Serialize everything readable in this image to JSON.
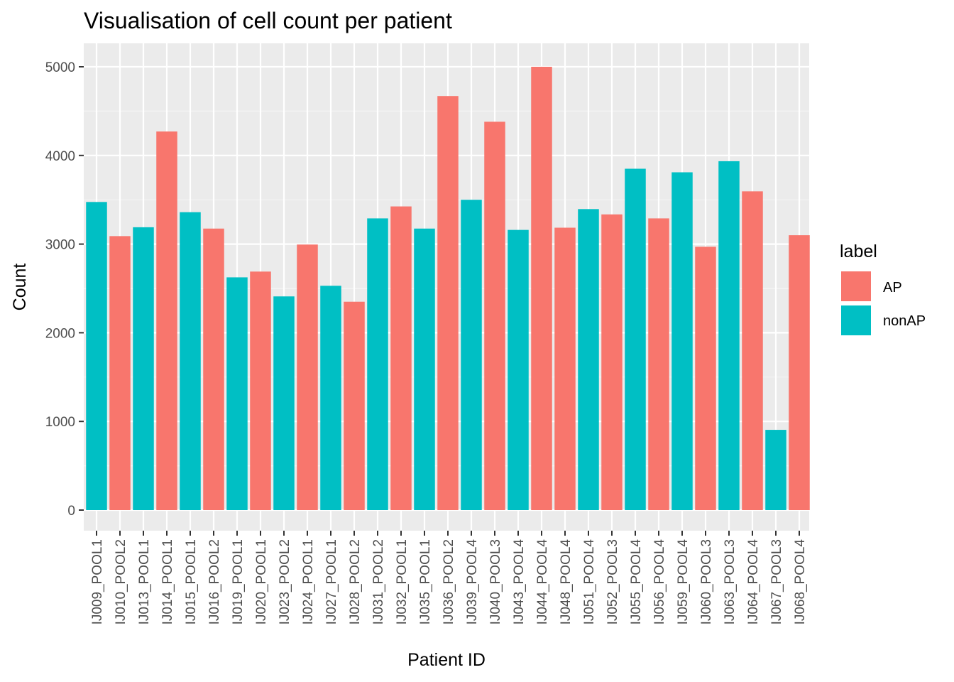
{
  "chart_data": {
    "type": "bar",
    "title": "Visualisation of cell count per patient",
    "xlabel": "Patient ID",
    "ylabel": "Count",
    "ylim": [
      0,
      5250
    ],
    "yticks": [
      0,
      1000,
      2000,
      3000,
      4000,
      5000
    ],
    "ytick_labels": [
      "0",
      "1000",
      "2000",
      "3000",
      "4000",
      "5000"
    ],
    "grid": true,
    "legend_position": "right",
    "legend": {
      "title": "label",
      "entries": [
        {
          "key": "AP",
          "label": "AP",
          "color": "#F8766D"
        },
        {
          "key": "nonAP",
          "label": "nonAP",
          "color": "#00BFC4"
        }
      ]
    },
    "categories": [
      "IJ009_POOL1",
      "IJ010_POOL2",
      "IJ013_POOL1",
      "IJ014_POOL1",
      "IJ015_POOL1",
      "IJ016_POOL2",
      "IJ019_POOL1",
      "IJ020_POOL1",
      "IJ023_POOL2",
      "IJ024_POOL1",
      "IJ027_POOL1",
      "IJ028_POOL2",
      "IJ031_POOL2",
      "IJ032_POOL1",
      "IJ035_POOL1",
      "IJ036_POOL2",
      "IJ039_POOL4",
      "IJ040_POOL3",
      "IJ043_POOL4",
      "IJ044_POOL4",
      "IJ048_POOL4",
      "IJ051_POOL4",
      "IJ052_POOL3",
      "IJ055_POOL4",
      "IJ056_POOL4",
      "IJ059_POOL4",
      "IJ060_POOL3",
      "IJ063_POOL3",
      "IJ064_POOL4",
      "IJ067_POOL3",
      "IJ068_POOL4"
    ],
    "values": [
      3475,
      3090,
      3190,
      4270,
      3360,
      3175,
      2625,
      2690,
      2410,
      2995,
      2530,
      2350,
      3290,
      3425,
      3175,
      4670,
      3500,
      4380,
      3160,
      5000,
      3185,
      3395,
      3335,
      3850,
      3290,
      3810,
      2970,
      3935,
      3595,
      905,
      3100
    ],
    "groups": [
      "nonAP",
      "AP",
      "nonAP",
      "AP",
      "nonAP",
      "AP",
      "nonAP",
      "AP",
      "nonAP",
      "AP",
      "nonAP",
      "AP",
      "nonAP",
      "AP",
      "nonAP",
      "AP",
      "nonAP",
      "AP",
      "nonAP",
      "AP",
      "AP",
      "nonAP",
      "AP",
      "nonAP",
      "AP",
      "nonAP",
      "AP",
      "nonAP",
      "AP",
      "nonAP",
      "AP"
    ]
  }
}
